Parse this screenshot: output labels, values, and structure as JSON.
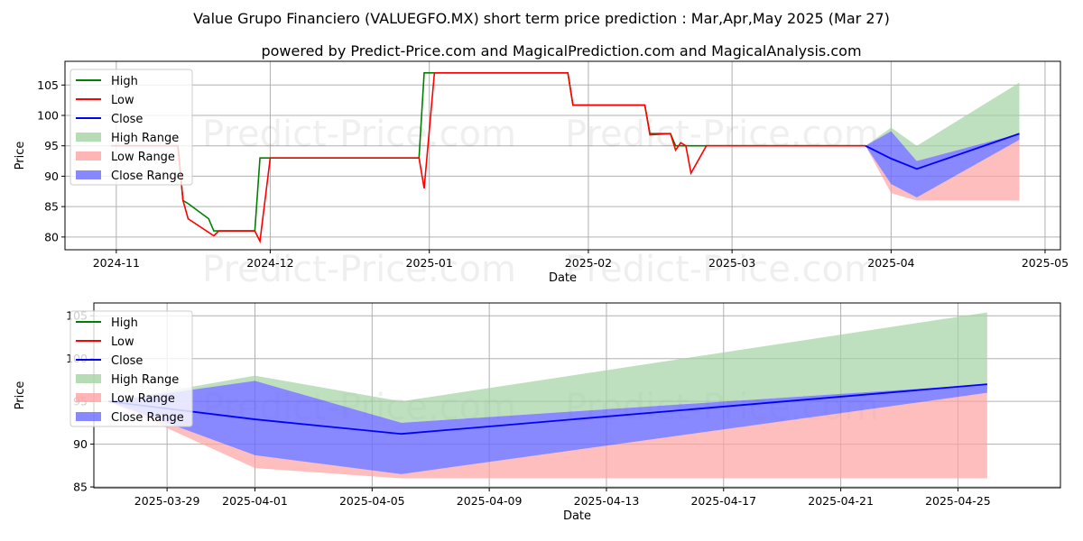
{
  "title": "Value Grupo Financiero (VALUEGFO.MX) short term price prediction : Mar,Apr,May 2025 (Mar 27)",
  "subtitle": "powered by Predict-Price.com and MagicalPrediction.com and MagicalAnalysis.com",
  "watermark": "Predict-Price.com",
  "colors": {
    "high": "#008000",
    "low": "#ff0000",
    "close": "#0000ff",
    "high_range": "#a3d3a3",
    "low_range": "#ffa3a3",
    "close_range": "#6a6aff"
  },
  "chart_data": [
    {
      "type": "line",
      "xlabel": "Date",
      "ylabel": "Price",
      "xlim": [
        "2024-10-22",
        "2025-05-04"
      ],
      "ylim": [
        77.9,
        108.9
      ],
      "yticks": [
        80,
        85,
        90,
        95,
        100,
        105
      ],
      "xticks": [
        {
          "date": "2024-11-01",
          "label": "2024-11"
        },
        {
          "date": "2024-12-01",
          "label": "2024-12"
        },
        {
          "date": "2025-01-01",
          "label": "2025-01"
        },
        {
          "date": "2025-02-01",
          "label": "2025-02"
        },
        {
          "date": "2025-03-01",
          "label": "2025-03"
        },
        {
          "date": "2025-04-01",
          "label": "2025-04"
        },
        {
          "date": "2025-05-01",
          "label": "2025-05"
        }
      ],
      "grid": true,
      "legend_position": "top-left",
      "legend": [
        "High",
        "Low",
        "Close",
        "High Range",
        "Low Range",
        "Close Range"
      ],
      "high": [
        [
          "2024-10-31",
          95
        ],
        [
          "2024-11-13",
          95
        ],
        [
          "2024-11-14",
          86
        ],
        [
          "2024-11-15",
          85.5
        ],
        [
          "2024-11-19",
          83
        ],
        [
          "2024-11-20",
          81
        ],
        [
          "2024-11-28",
          81
        ],
        [
          "2024-11-29",
          93
        ],
        [
          "2024-12-30",
          93
        ],
        [
          "2024-12-31",
          107
        ],
        [
          "2025-01-28",
          107
        ],
        [
          "2025-01-29",
          101.7
        ],
        [
          "2025-02-12",
          101.7
        ],
        [
          "2025-02-13",
          97
        ],
        [
          "2025-02-17",
          97
        ],
        [
          "2025-02-18",
          95
        ],
        [
          "2025-03-27",
          95
        ]
      ],
      "low": [
        [
          "2024-10-31",
          95
        ],
        [
          "2024-11-13",
          95
        ],
        [
          "2024-11-14",
          86
        ],
        [
          "2024-11-15",
          83
        ],
        [
          "2024-11-20",
          80.2
        ],
        [
          "2024-11-21",
          81
        ],
        [
          "2024-11-28",
          81
        ],
        [
          "2024-11-29",
          79.3
        ],
        [
          "2024-12-01",
          93
        ],
        [
          "2024-12-30",
          93
        ],
        [
          "2024-12-31",
          88
        ],
        [
          "2025-01-02",
          107
        ],
        [
          "2025-01-28",
          107
        ],
        [
          "2025-01-29",
          101.7
        ],
        [
          "2025-02-12",
          101.7
        ],
        [
          "2025-02-13",
          96.8
        ],
        [
          "2025-02-17",
          97
        ],
        [
          "2025-02-18",
          94.3
        ],
        [
          "2025-02-19",
          95.5
        ],
        [
          "2025-02-20",
          95
        ],
        [
          "2025-02-21",
          90.5
        ],
        [
          "2025-02-24",
          95
        ],
        [
          "2025-03-27",
          95
        ]
      ],
      "forecast": {
        "dates": [
          "2025-03-27",
          "2025-04-01",
          "2025-04-06",
          "2025-04-26"
        ],
        "close": [
          95,
          92.9,
          91.2,
          97
        ],
        "high_range": [
          [
            95,
            95
          ],
          [
            97.4,
            98
          ],
          [
            92.5,
            95
          ],
          [
            97,
            105.4
          ]
        ],
        "close_range": [
          [
            95,
            95
          ],
          [
            88.7,
            97.4
          ],
          [
            86.5,
            92.5
          ],
          [
            96,
            97
          ]
        ],
        "low_range": [
          [
            95,
            95
          ],
          [
            87.2,
            88.7
          ],
          [
            86,
            86.5
          ],
          [
            86,
            96
          ]
        ]
      }
    },
    {
      "type": "line",
      "xlabel": "Date",
      "ylabel": "Price",
      "xlim": [
        "2025-03-26.5",
        "2025-04-28.5"
      ],
      "ylim": [
        84.9,
        106.5
      ],
      "yticks": [
        85,
        90,
        95,
        100,
        105
      ],
      "xticks": [
        {
          "date": "2025-03-29",
          "label": "2025-03-29"
        },
        {
          "date": "2025-04-01",
          "label": "2025-04-01"
        },
        {
          "date": "2025-04-05",
          "label": "2025-04-05"
        },
        {
          "date": "2025-04-09",
          "label": "2025-04-09"
        },
        {
          "date": "2025-04-13",
          "label": "2025-04-13"
        },
        {
          "date": "2025-04-17",
          "label": "2025-04-17"
        },
        {
          "date": "2025-04-21",
          "label": "2025-04-21"
        },
        {
          "date": "2025-04-25",
          "label": "2025-04-25"
        }
      ],
      "grid": true,
      "legend_position": "top-left",
      "legend": [
        "High",
        "Low",
        "Close",
        "High Range",
        "Low Range",
        "Close Range"
      ]
    }
  ]
}
